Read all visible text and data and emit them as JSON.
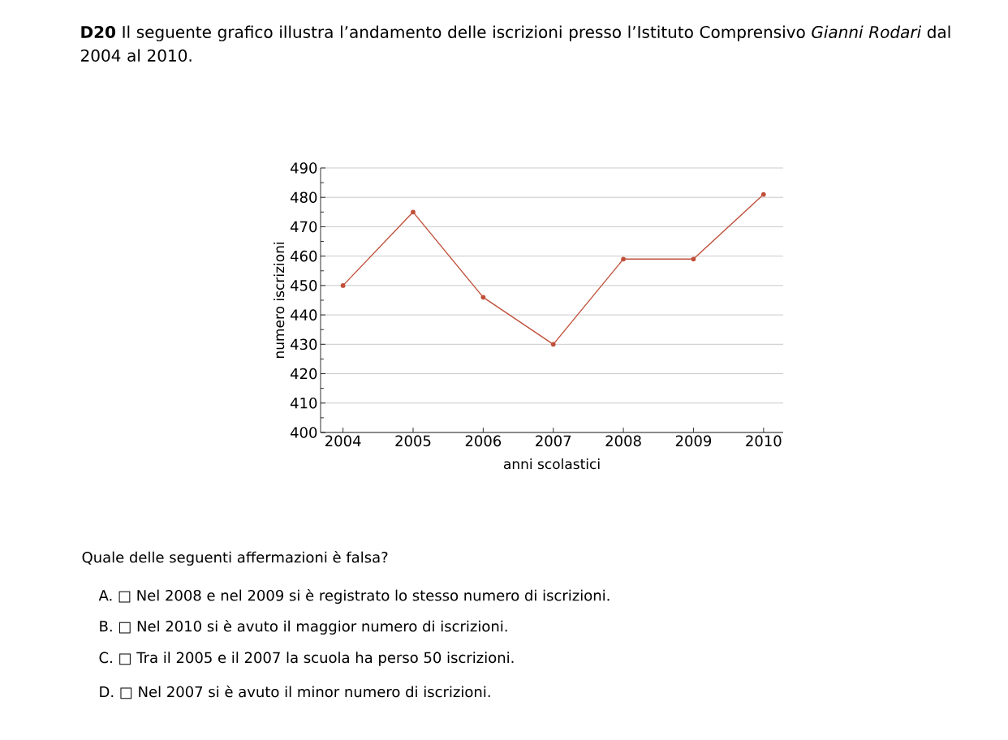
{
  "chart_data": {
    "type": "line",
    "title": "**D20** Il seguente grafico illustra l’andamento delle iscrizioni presso l’Istituto Comprensivo *Gianni Rodari* dal 2004 al 2010.",
    "xlabel": "anni scolastici",
    "ylabel": "numero iscrizioni",
    "categories": [
      "2004",
      "2005",
      "2006",
      "2007",
      "2008",
      "2009",
      "2010"
    ],
    "series": [
      {
        "color": "#c0503a",
        "values": [
          450,
          475,
          446,
          430,
          459,
          459,
          481
        ]
      }
    ],
    "ylim": [
      400,
      490
    ],
    "yticks": [
      400,
      410,
      420,
      430,
      440,
      450,
      460,
      470,
      480,
      490
    ],
    "grid": "y",
    "marker": "circle",
    "line_style": "solid",
    "annotations": [
      "Quale delle seguenti affermazioni è falsa?",
      "A. □ Nel 2008 e nel 2009 si è registrato lo stesso numero di iscrizioni.",
      "B. □ Nel 2010 si è avuto il maggior numero di iscrizioni.",
      "C. □ Tra il 2005 e il 2007 la scuola ha perso 50 iscrizioni.",
      "D. □ Nel 2007 si è avuto il minor numero di iscrizioni."
    ]
  }
}
